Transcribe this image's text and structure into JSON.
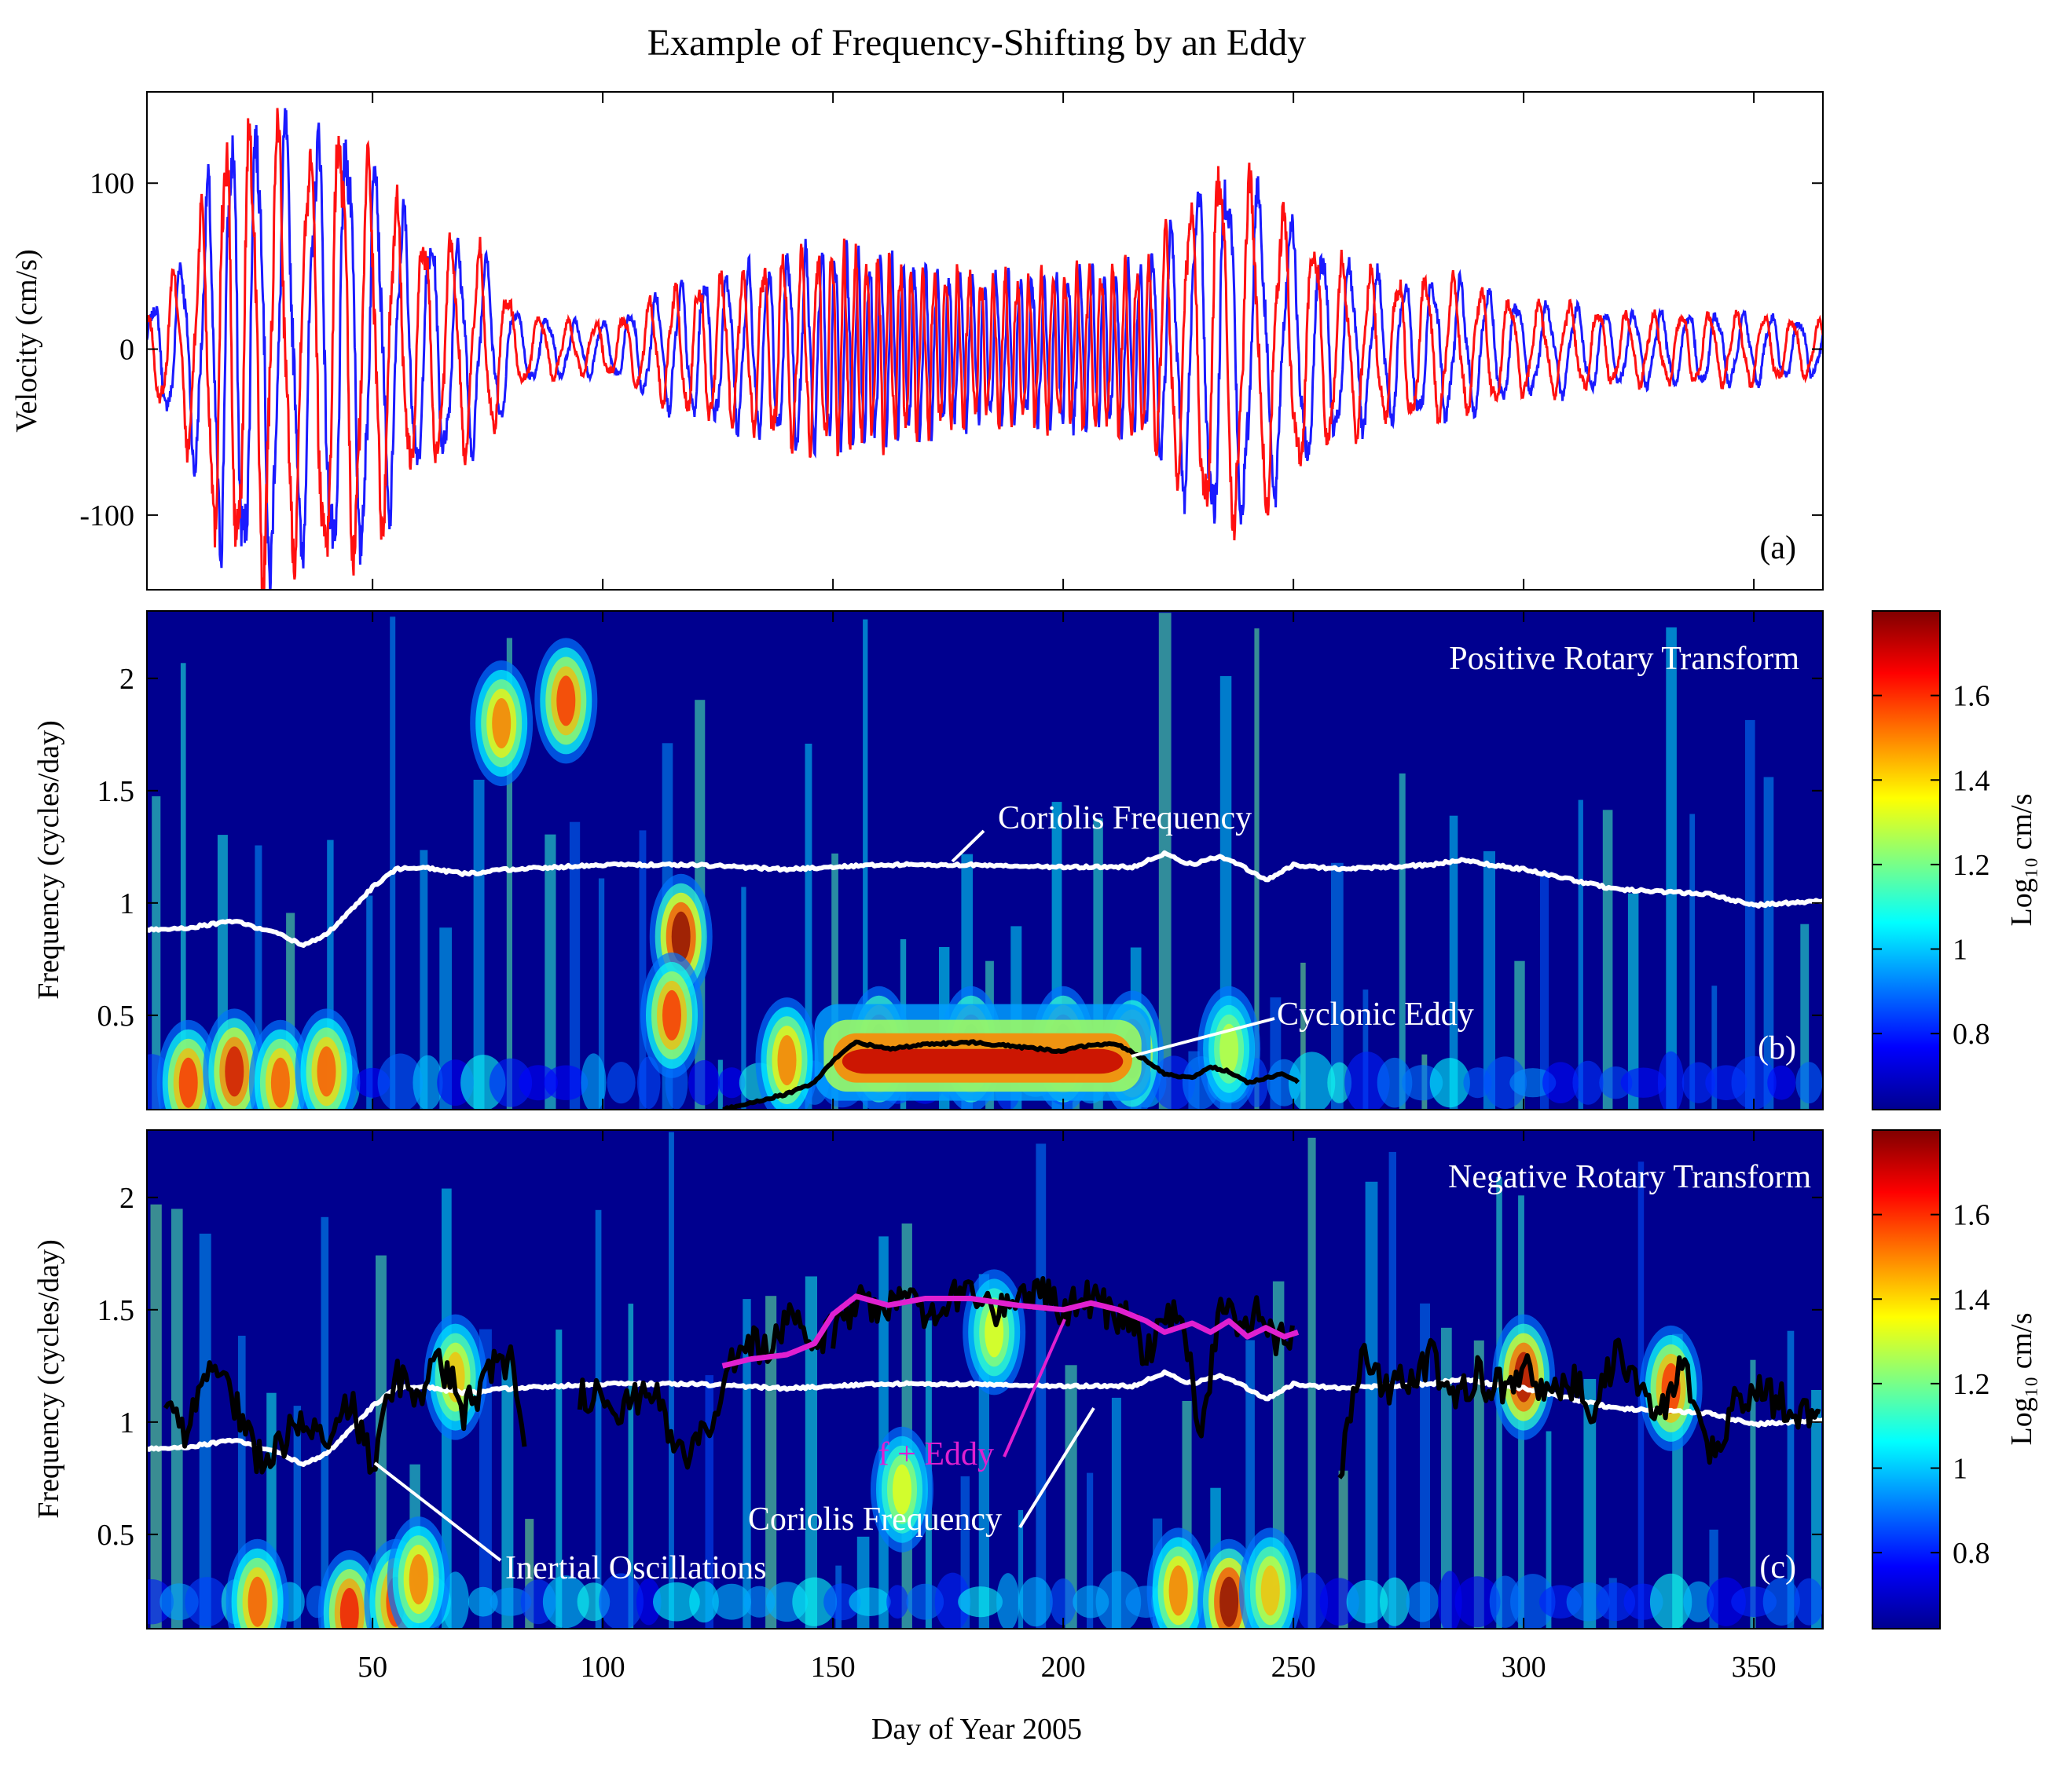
{
  "figure_title": "Example of Frequency-Shifting by an Eddy",
  "x_axis_label": "Day of Year 2005",
  "x_ticks": [
    "50",
    "100",
    "150",
    "200",
    "250",
    "300",
    "350"
  ],
  "colors": {
    "series_red": "#ff1010",
    "series_blue": "#1a1aff",
    "coriolis_line": "#ffffff",
    "eddy_line": "#000000",
    "f_plus_eddy_line": "#e020d0",
    "background": "#00008f"
  },
  "chart_data": [
    {
      "type": "line",
      "panel_label": "(a)",
      "ylabel": "Velocity (cm/s)",
      "xlim": [
        1,
        365
      ],
      "ylim": [
        -145,
        155
      ],
      "yticks": [
        "-100",
        "0",
        "100"
      ],
      "ytick_values": [
        -100,
        0,
        100
      ],
      "grid": false,
      "legend": "none",
      "envelope_days": [
        1,
        10,
        18,
        26,
        34,
        42,
        50,
        58,
        66,
        74,
        82,
        92,
        102,
        112,
        122,
        132,
        142,
        152,
        162,
        172,
        182,
        192,
        202,
        212,
        218,
        226,
        234,
        242,
        250,
        260,
        270,
        280,
        290,
        300,
        310,
        320,
        330,
        340,
        350,
        365
      ],
      "envelope_amplitude_cm_s": [
        20,
        55,
        120,
        130,
        110,
        130,
        110,
        70,
        60,
        55,
        20,
        15,
        15,
        30,
        40,
        45,
        55,
        55,
        50,
        45,
        40,
        40,
        45,
        45,
        50,
        80,
        105,
        90,
        70,
        50,
        40,
        40,
        35,
        25,
        25,
        20,
        20,
        20,
        20,
        15
      ],
      "oscillation_period_days": [
        6.0,
        6.0,
        5.0,
        6.0,
        7.0,
        6.5,
        6.0,
        6.0,
        6.0,
        6.0,
        7.0,
        6.0,
        6.0,
        5.5,
        5.0,
        4.5,
        4.0,
        2.5,
        2.4,
        2.5,
        2.6,
        2.6,
        2.6,
        2.6,
        2.6,
        6.0,
        6.5,
        7.0,
        7.0,
        6.0,
        6.0,
        6.0,
        6.0,
        6.5,
        6.5,
        6.0,
        6.0,
        6.0,
        6.0,
        6.0
      ]
    },
    {
      "type": "heatmap",
      "panel_label": "(b)",
      "transform_label": "Positive Rotary Transform",
      "ylabel": "Frequency (cycles/day)",
      "xlim": [
        1,
        365
      ],
      "ylim": [
        0.08,
        2.3
      ],
      "yticks": [
        "0.5",
        "1",
        "1.5",
        "2"
      ],
      "ytick_values": [
        0.5,
        1,
        1.5,
        2
      ],
      "colorbar_label": "Log₁₀ cm/s",
      "colorbar_range": [
        0.62,
        1.8
      ],
      "colorbar_ticks": [
        "0.8",
        "1",
        "1.2",
        "1.4",
        "1.6"
      ],
      "colorbar_tick_values": [
        0.8,
        1.0,
        1.2,
        1.4,
        1.6
      ],
      "coriolis_frequency": {
        "name": "Coriolis Frequency",
        "x": [
          1,
          10,
          20,
          30,
          35,
          40,
          45,
          50,
          55,
          60,
          70,
          80,
          100,
          120,
          140,
          160,
          180,
          200,
          215,
          222,
          228,
          234,
          240,
          244,
          250,
          260,
          280,
          286,
          300,
          320,
          340,
          350,
          365
        ],
        "y": [
          0.88,
          0.89,
          0.92,
          0.86,
          0.81,
          0.86,
          0.96,
          1.07,
          1.15,
          1.16,
          1.13,
          1.15,
          1.17,
          1.17,
          1.15,
          1.17,
          1.17,
          1.16,
          1.16,
          1.22,
          1.17,
          1.21,
          1.15,
          1.1,
          1.17,
          1.15,
          1.17,
          1.19,
          1.15,
          1.06,
          1.04,
          0.99,
          1.01
        ]
      },
      "cyclonic_eddy": {
        "name": "Cyclonic Eddy",
        "x": [
          126,
          132,
          140,
          146,
          150,
          155,
          162,
          170,
          180,
          190,
          200,
          206,
          212,
          218,
          222,
          228,
          232,
          236,
          240,
          244,
          248,
          251
        ],
        "y": [
          0.08,
          0.11,
          0.15,
          0.2,
          0.3,
          0.38,
          0.35,
          0.37,
          0.38,
          0.36,
          0.34,
          0.37,
          0.37,
          0.3,
          0.24,
          0.22,
          0.27,
          0.25,
          0.2,
          0.22,
          0.24,
          0.2
        ]
      },
      "hotspots": [
        {
          "x": 10,
          "f": 0.2,
          "amp": 0.8
        },
        {
          "x": 20,
          "f": 0.25,
          "amp": 0.9
        },
        {
          "x": 30,
          "f": 0.2,
          "amp": 0.75
        },
        {
          "x": 40,
          "f": 0.25,
          "amp": 0.75
        },
        {
          "x": 78,
          "f": 1.8,
          "amp": 0.7
        },
        {
          "x": 92,
          "f": 1.9,
          "amp": 0.8
        },
        {
          "x": 117,
          "f": 0.85,
          "amp": 1.0
        },
        {
          "x": 115,
          "f": 0.5,
          "amp": 0.8
        },
        {
          "x": 140,
          "f": 0.3,
          "amp": 0.7
        },
        {
          "x": 160,
          "f": 0.35,
          "amp": 1.0
        },
        {
          "x": 180,
          "f": 0.35,
          "amp": 1.0
        },
        {
          "x": 200,
          "f": 0.35,
          "amp": 1.0
        },
        {
          "x": 215,
          "f": 0.33,
          "amp": 0.9
        },
        {
          "x": 236,
          "f": 0.35,
          "amp": 0.45
        }
      ]
    },
    {
      "type": "heatmap",
      "panel_label": "(c)",
      "transform_label": "Negative Rotary Transform",
      "ylabel": "Frequency (cycles/day)",
      "xlim": [
        1,
        365
      ],
      "ylim": [
        0.08,
        2.3
      ],
      "yticks": [
        "0.5",
        "1",
        "1.5",
        "2"
      ],
      "ytick_values": [
        0.5,
        1,
        1.5,
        2
      ],
      "colorbar_label": "Log₁₀ cm/s",
      "colorbar_range": [
        0.62,
        1.8
      ],
      "colorbar_ticks": [
        "0.8",
        "1",
        "1.2",
        "1.4",
        "1.6"
      ],
      "colorbar_tick_values": [
        0.8,
        1.0,
        1.2,
        1.4,
        1.6
      ],
      "coriolis_frequency": {
        "name": "Coriolis Frequency",
        "x": [
          1,
          10,
          20,
          30,
          35,
          40,
          45,
          50,
          55,
          60,
          70,
          80,
          100,
          120,
          140,
          160,
          180,
          200,
          215,
          222,
          228,
          234,
          240,
          244,
          250,
          260,
          280,
          286,
          300,
          320,
          340,
          350,
          365
        ],
        "y": [
          0.88,
          0.89,
          0.92,
          0.86,
          0.81,
          0.86,
          0.96,
          1.07,
          1.15,
          1.16,
          1.13,
          1.15,
          1.17,
          1.17,
          1.15,
          1.17,
          1.17,
          1.16,
          1.16,
          1.22,
          1.17,
          1.21,
          1.15,
          1.1,
          1.17,
          1.15,
          1.17,
          1.19,
          1.15,
          1.06,
          1.04,
          0.99,
          1.01
        ]
      },
      "f_plus_eddy": {
        "name": "f + Eddy",
        "x": [
          126,
          132,
          140,
          146,
          150,
          155,
          162,
          170,
          180,
          190,
          200,
          206,
          212,
          218,
          222,
          228,
          232,
          236,
          240,
          244,
          248,
          251
        ],
        "y": [
          1.25,
          1.28,
          1.3,
          1.35,
          1.48,
          1.56,
          1.52,
          1.55,
          1.55,
          1.52,
          1.5,
          1.53,
          1.5,
          1.45,
          1.4,
          1.44,
          1.4,
          1.45,
          1.38,
          1.42,
          1.38,
          1.4
        ]
      },
      "inertial_oscillations": {
        "name": "Inertial Oscillations",
        "segments": [
          {
            "x": [
              5,
              10,
              15,
              20,
              25,
              30,
              35,
              40,
              45,
              50,
              55,
              60,
              65,
              70,
              75,
              80,
              83
            ],
            "y": [
              1.05,
              0.95,
              1.3,
              1.1,
              0.85,
              0.9,
              1.05,
              0.85,
              1.1,
              0.8,
              1.2,
              1.15,
              1.25,
              1.05,
              1.2,
              1.3,
              0.95
            ]
          },
          {
            "x": [
              95,
              100,
              105,
              110,
              115,
              120,
              125,
              130,
              135,
              140,
              145,
              150
            ],
            "y": [
              1.1,
              1.15,
              1.05,
              1.2,
              0.9,
              0.85,
              1.1,
              1.4,
              1.3,
              1.45,
              1.35,
              1.4
            ]
          },
          {
            "x": [
              150,
              155,
              160,
              165,
              170,
              175,
              180,
              185,
              190,
              195,
              200,
              205,
              210,
              215,
              218
            ],
            "y": [
              1.4,
              1.55,
              1.5,
              1.6,
              1.45,
              1.55,
              1.6,
              1.5,
              1.55,
              1.6,
              1.5,
              1.55,
              1.5,
              1.45,
              1.3
            ]
          },
          {
            "x": [
              218,
              222,
              226,
              230,
              234,
              238,
              242,
              246,
              250
            ],
            "y": [
              1.3,
              1.5,
              1.45,
              0.95,
              1.55,
              1.4,
              1.5,
              1.35,
              1.4
            ]
          },
          {
            "x": [
              260,
              265,
              270,
              275,
              280,
              285,
              290,
              295,
              300,
              305,
              310,
              315,
              320,
              325,
              330,
              335,
              340,
              345,
              350,
              355,
              360,
              365
            ],
            "y": [
              0.75,
              1.3,
              1.15,
              1.2,
              1.3,
              1.1,
              1.2,
              1.15,
              1.25,
              1.1,
              1.2,
              1.05,
              1.3,
              1.15,
              1.05,
              1.25,
              0.85,
              1.05,
              1.15,
              1.1,
              1.05,
              1.1
            ]
          }
        ]
      },
      "hotspots": [
        {
          "x": 25,
          "f": 0.2,
          "amp": 0.75
        },
        {
          "x": 45,
          "f": 0.15,
          "amp": 0.85
        },
        {
          "x": 55,
          "f": 0.2,
          "amp": 0.8
        },
        {
          "x": 60,
          "f": 0.3,
          "amp": 0.7
        },
        {
          "x": 68,
          "f": 1.2,
          "amp": 0.6
        },
        {
          "x": 165,
          "f": 0.7,
          "amp": 0.5
        },
        {
          "x": 185,
          "f": 1.4,
          "amp": 0.5
        },
        {
          "x": 225,
          "f": 0.25,
          "amp": 0.7
        },
        {
          "x": 236,
          "f": 0.2,
          "amp": 1.0
        },
        {
          "x": 245,
          "f": 0.25,
          "amp": 0.6
        },
        {
          "x": 300,
          "f": 1.2,
          "amp": 0.95
        },
        {
          "x": 332,
          "f": 1.15,
          "amp": 0.8
        }
      ]
    }
  ]
}
